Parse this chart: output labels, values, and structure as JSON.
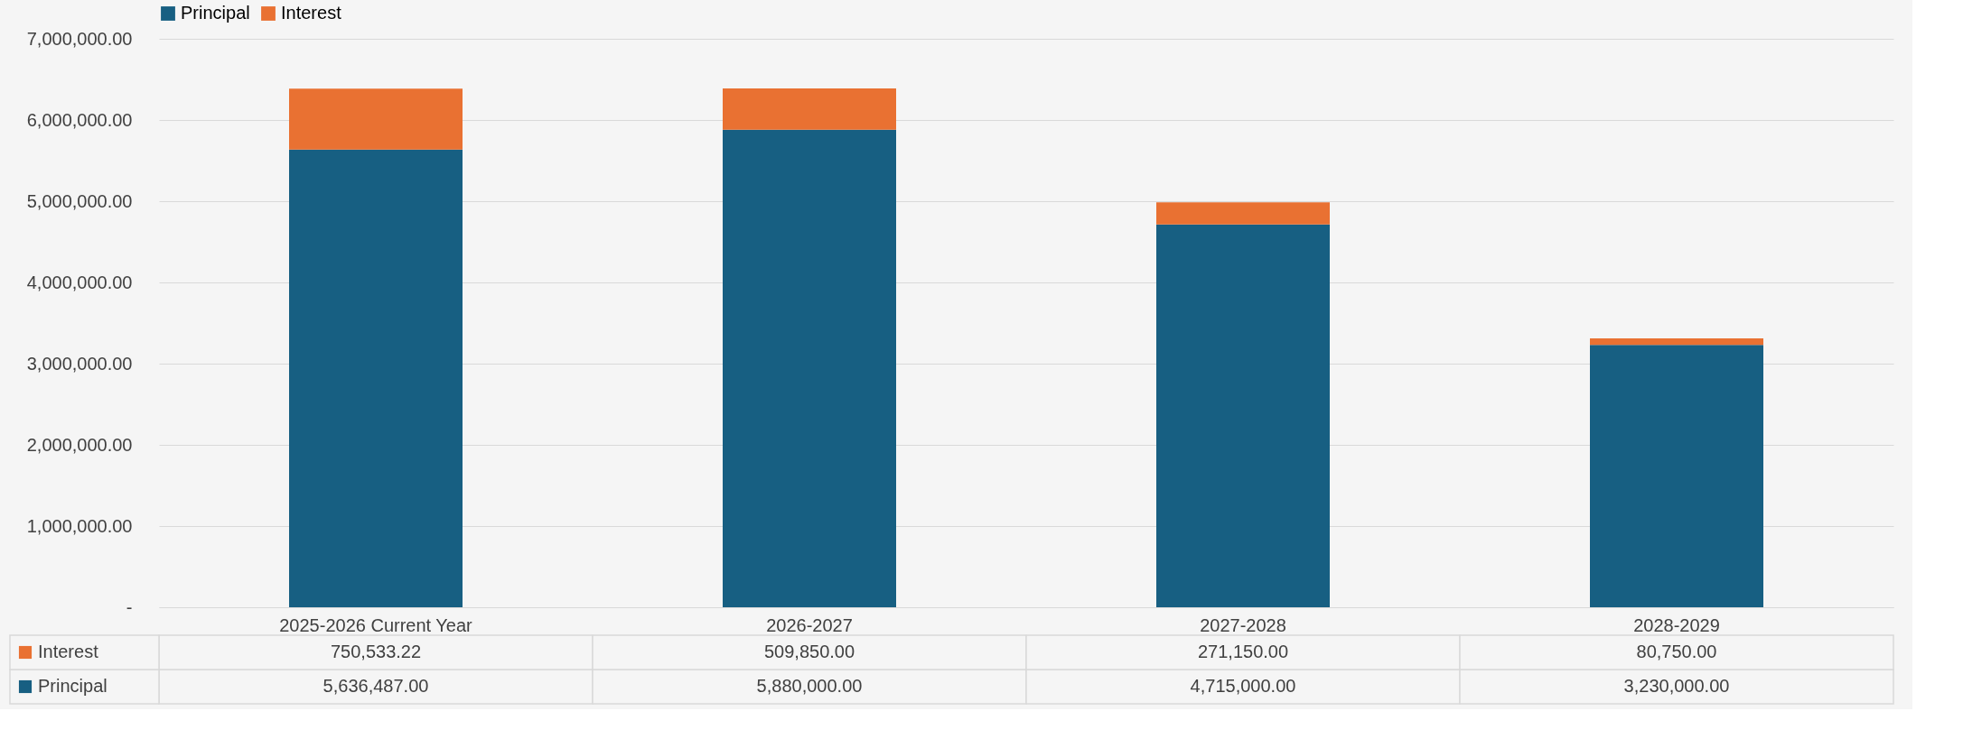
{
  "chart_data": {
    "type": "bar",
    "stacked": true,
    "categories": [
      "2025-2026 Current Year",
      "2026-2027",
      "2027-2028",
      "2028-2029"
    ],
    "series": [
      {
        "name": "Principal",
        "color": "#175f82",
        "values": [
          5636487.0,
          5880000.0,
          4715000.0,
          3230000.0
        ],
        "value_labels": [
          "5,636,487.00",
          "5,880,000.00",
          "4,715,000.00",
          "3,230,000.00"
        ]
      },
      {
        "name": "Interest",
        "color": "#e97132",
        "values": [
          750533.22,
          509850.0,
          271150.0,
          80750.0
        ],
        "value_labels": [
          "750,533.22",
          "509,850.00",
          "271,150.00",
          "80,750.00"
        ]
      }
    ],
    "ylim": [
      0,
      7000000
    ],
    "yticks": [
      {
        "value": 0,
        "label": "-"
      },
      {
        "value": 1000000,
        "label": "1,000,000.00"
      },
      {
        "value": 2000000,
        "label": "2,000,000.00"
      },
      {
        "value": 3000000,
        "label": "3,000,000.00"
      },
      {
        "value": 4000000,
        "label": "4,000,000.00"
      },
      {
        "value": 5000000,
        "label": "5,000,000.00"
      },
      {
        "value": 6000000,
        "label": "6,000,000.00"
      },
      {
        "value": 7000000,
        "label": "7,000,000.00"
      }
    ],
    "grid": "y",
    "legend": "top"
  }
}
